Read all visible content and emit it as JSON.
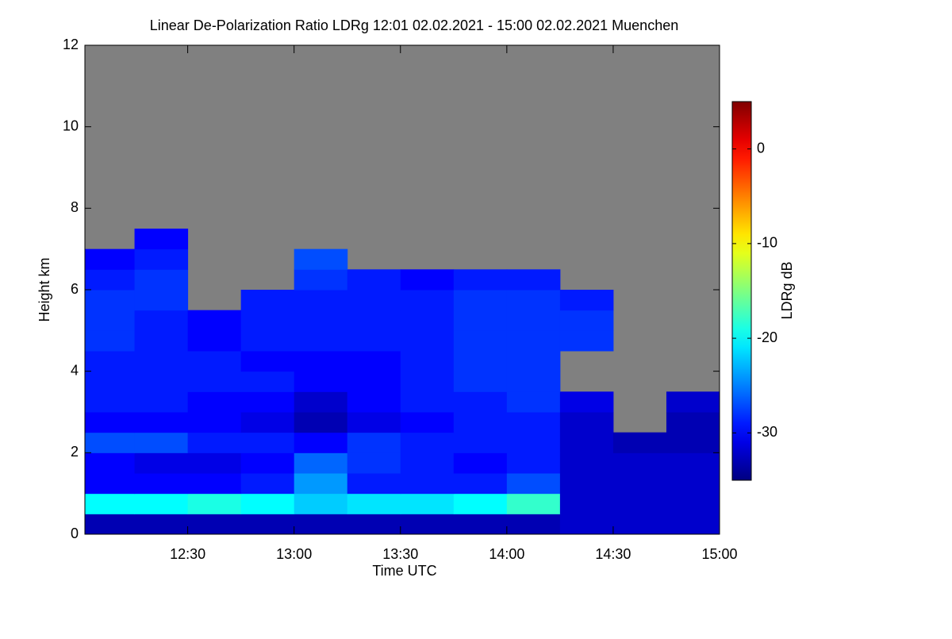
{
  "chart_data": {
    "type": "heatmap",
    "title": "Linear De-Polarization Ratio LDRg   12:01 02.02.2021 - 15:00 02.02.2021 Muenchen",
    "x_label": "Time UTC",
    "y_label": "Height km",
    "colorbar_label": "LDRg dB",
    "xlim": [
      12.0167,
      15.0
    ],
    "xticks": [
      {
        "value": 12.5,
        "label": "12:30"
      },
      {
        "value": 13.0,
        "label": "13:00"
      },
      {
        "value": 13.5,
        "label": "13:30"
      },
      {
        "value": 14.0,
        "label": "14:00"
      },
      {
        "value": 14.5,
        "label": "14:30"
      },
      {
        "value": 15.0,
        "label": "15:00"
      }
    ],
    "ylim": [
      0,
      12
    ],
    "yticks": [
      0,
      2,
      4,
      6,
      8,
      10,
      12
    ],
    "zlim": [
      -35,
      5
    ],
    "zticks": [
      -30,
      -20,
      -10,
      0
    ],
    "colormap": "jet",
    "nan_color": "#808080",
    "x_bins": [
      12.0167,
      12.25,
      12.5,
      12.75,
      13.0,
      13.25,
      13.5,
      13.75,
      14.0,
      14.25,
      14.5,
      14.75,
      15.0
    ],
    "y_bins": [
      0,
      0.5,
      1,
      1.5,
      2,
      2.5,
      3,
      3.5,
      4,
      4.5,
      5,
      5.5,
      6,
      6.5,
      7,
      7.5
    ],
    "z": [
      [
        -33,
        -33,
        -33,
        -33,
        -33,
        -33,
        -33,
        -33,
        -33,
        -32,
        -32,
        -32
      ],
      [
        -20,
        -20,
        -19,
        -20,
        -22,
        -21,
        -21,
        -20,
        -18,
        -32,
        -32,
        -32
      ],
      [
        -30,
        -30,
        -30,
        -29,
        -24,
        -29,
        -29,
        -29,
        -27,
        -32,
        -32,
        -32
      ],
      [
        -30,
        -31,
        -31,
        -30,
        -26,
        -28,
        -29,
        -30,
        -29,
        -32,
        -32,
        -32
      ],
      [
        -27,
        -27,
        -29,
        -29,
        -30,
        -28,
        -29,
        -29,
        -29,
        -32,
        -33,
        -33
      ],
      [
        -30,
        -30,
        -30,
        -31,
        -33,
        -31,
        -30,
        -29,
        -29,
        -32,
        null,
        -33
      ],
      [
        -29,
        -29,
        -30,
        -30,
        -32,
        -30,
        -29,
        -29,
        -28,
        -31,
        null,
        -32
      ],
      [
        -29,
        -29,
        -29,
        -29,
        -30,
        -30,
        -29,
        -28,
        -28,
        null,
        null,
        null
      ],
      [
        -29,
        -29,
        -29,
        -30,
        -30,
        -30,
        -29,
        -28,
        -28,
        null,
        null,
        null
      ],
      [
        -28,
        -29,
        -30,
        -29,
        -29,
        -29,
        -29,
        -28,
        -28,
        -28,
        null,
        null
      ],
      [
        -28,
        -29,
        -30,
        -29,
        -29,
        -29,
        -29,
        -28,
        -28,
        -28,
        null,
        null
      ],
      [
        -28,
        -28,
        null,
        -29,
        -29,
        -29,
        -29,
        -28,
        -28,
        -29,
        null,
        null
      ],
      [
        -29,
        -28,
        null,
        null,
        -28,
        -29,
        -30,
        -29,
        -29,
        null,
        null,
        null
      ],
      [
        -30,
        -29,
        null,
        null,
        -27,
        null,
        null,
        null,
        null,
        null,
        null,
        null
      ],
      [
        null,
        -30,
        null,
        null,
        null,
        null,
        null,
        null,
        null,
        null,
        null,
        null
      ]
    ]
  }
}
